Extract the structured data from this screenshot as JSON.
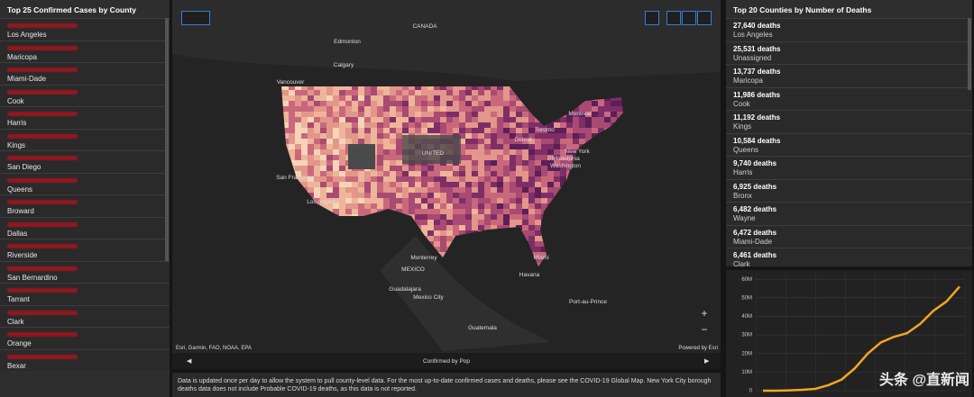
{
  "left": {
    "title": "Top 25 Confirmed Cases by County",
    "items": [
      "Los Angeles",
      "Maricopa",
      "Miami-Dade",
      "Cook",
      "Harris",
      "Kings",
      "San Diego",
      "Queens",
      "Broward",
      "Dallas",
      "Riverside",
      "San Bernardino",
      "Tarrant",
      "Clark",
      "Orange",
      "Bexar"
    ]
  },
  "right": {
    "title": "Top 20 Counties by Number of Deaths",
    "items": [
      {
        "deaths": "27,640 deaths",
        "county": "Los Angeles"
      },
      {
        "deaths": "25,531 deaths",
        "county": "Unassigned"
      },
      {
        "deaths": "13,737 deaths",
        "county": "Maricopa"
      },
      {
        "deaths": "11,986 deaths",
        "county": "Cook"
      },
      {
        "deaths": "11,192 deaths",
        "county": "Kings"
      },
      {
        "deaths": "10,584 deaths",
        "county": "Queens"
      },
      {
        "deaths": "9,740 deaths",
        "county": "Harris"
      },
      {
        "deaths": "6,925 deaths",
        "county": "Bronx"
      },
      {
        "deaths": "6,482 deaths",
        "county": "Wayne"
      },
      {
        "deaths": "6,472 deaths",
        "county": "Miami-Dade"
      },
      {
        "deaths": "6,461 deaths",
        "county": "Clark"
      }
    ]
  },
  "map": {
    "labels": [
      "CANADA",
      "Edmonton",
      "Calgary",
      "Vancouver",
      "Montreal",
      "Toronto",
      "Detroit",
      "New York",
      "Philadelphia",
      "Washington",
      "UNITED",
      "San Francisco",
      "Los Angeles",
      "Monterrey",
      "MEXICO",
      "Miami",
      "Havana",
      "Guadalajara",
      "Mexico City",
      "Port-au-Prince",
      "Guatemala"
    ],
    "attribution": "Esri, Garmin, FAO, NOAA, EPA",
    "powered": "Powered by Esri",
    "layer": "Confirmed by Pop"
  },
  "note": "Data is updated once per day to allow the system to pull county-level data. For the most up-to-date confirmed cases and deaths, please see the COVID-19 Global Map. New York City borough deaths data does not include Probable COVID-19 deaths, as this data is not reported.",
  "watermark": "头条 @直新闻",
  "chart_data": {
    "type": "line",
    "color": "#f5a623",
    "categories": [
      null,
      null,
      null,
      null,
      null,
      null,
      null,
      null,
      null,
      null,
      null,
      null,
      null,
      null,
      null,
      null
    ],
    "values": [
      0,
      0,
      200000,
      500000,
      1000000,
      3000000,
      6000000,
      12000000,
      20000000,
      26000000,
      29000000,
      31000000,
      36000000,
      43000000,
      48000000,
      56000000
    ],
    "ylim": [
      0,
      63000000
    ],
    "yticks": [
      0,
      {
        "value": 10000000,
        "label": "10M"
      },
      {
        "value": 20000000,
        "label": "20M"
      },
      {
        "value": 30000000,
        "label": "30M"
      },
      {
        "value": 40000000,
        "label": "40M"
      },
      {
        "value": 50000000,
        "label": "50M"
      },
      {
        "value": 60000000,
        "label": "60M"
      }
    ],
    "grid": true
  }
}
